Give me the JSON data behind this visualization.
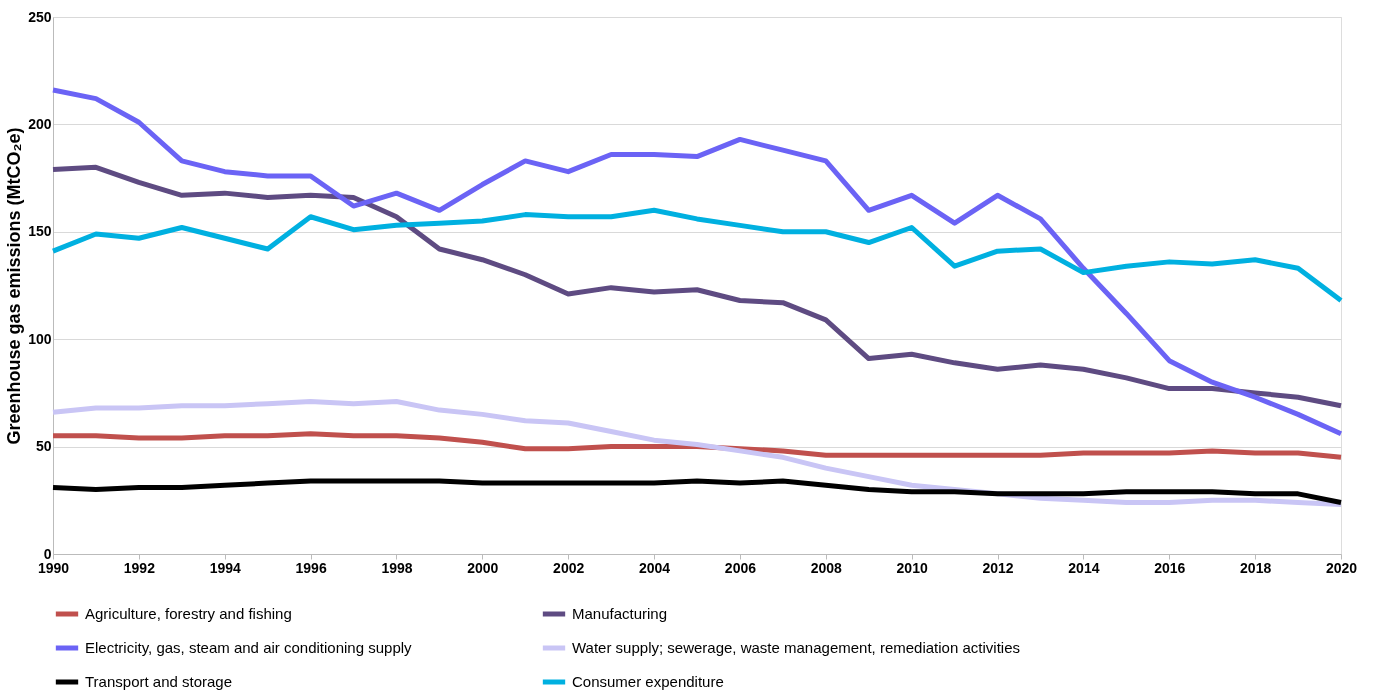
{
  "chart_data": {
    "type": "line",
    "ylabel": "Greenhouse gas emissions (MtCO₂e)",
    "x": [
      1990,
      1991,
      1992,
      1993,
      1994,
      1995,
      1996,
      1997,
      1998,
      1999,
      2000,
      2001,
      2002,
      2003,
      2004,
      2005,
      2006,
      2007,
      2008,
      2009,
      2010,
      2011,
      2012,
      2013,
      2014,
      2015,
      2016,
      2017,
      2018,
      2019,
      2020
    ],
    "xlim": [
      1990,
      2020
    ],
    "xticks": [
      1990,
      1992,
      1994,
      1996,
      1998,
      2000,
      2002,
      2004,
      2006,
      2008,
      2010,
      2012,
      2014,
      2016,
      2018,
      2020
    ],
    "ylim": [
      0,
      250
    ],
    "yticks": [
      0,
      50,
      100,
      150,
      200,
      250
    ],
    "grid": "y",
    "legend": "bottom",
    "marker": "none",
    "line_style": "solid",
    "series": [
      {
        "name": "Agriculture, forestry and fishing",
        "color": "#c0504d",
        "values": [
          55,
          55,
          54,
          54,
          55,
          55,
          56,
          55,
          55,
          54,
          52,
          49,
          49,
          50,
          50,
          50,
          49,
          48,
          46,
          46,
          46,
          46,
          46,
          46,
          47,
          47,
          47,
          48,
          47,
          47,
          45
        ]
      },
      {
        "name": "Manufacturing",
        "color": "#5e4b82",
        "values": [
          179,
          180,
          173,
          167,
          168,
          166,
          167,
          166,
          157,
          142,
          137,
          130,
          121,
          124,
          122,
          123,
          118,
          117,
          109,
          91,
          93,
          89,
          86,
          88,
          86,
          82,
          77,
          77,
          75,
          73,
          69
        ]
      },
      {
        "name": "Electricity, gas, steam and air conditioning supply",
        "color": "#6b63f5",
        "values": [
          216,
          212,
          201,
          183,
          178,
          176,
          176,
          162,
          168,
          160,
          172,
          183,
          178,
          186,
          186,
          185,
          193,
          188,
          183,
          160,
          167,
          154,
          167,
          156,
          133,
          112,
          90,
          80,
          73,
          65,
          56
        ]
      },
      {
        "name": "Water supply; sewerage, waste management, remediation activities",
        "color": "#c9c5f5",
        "values": [
          66,
          68,
          68,
          69,
          69,
          70,
          71,
          70,
          71,
          67,
          65,
          62,
          61,
          57,
          53,
          51,
          48,
          45,
          40,
          36,
          32,
          30,
          28,
          26,
          25,
          24,
          24,
          25,
          25,
          24,
          23
        ]
      },
      {
        "name": "Transport and storage",
        "color": "#000000",
        "values": [
          31,
          30,
          31,
          31,
          32,
          33,
          34,
          34,
          34,
          34,
          33,
          33,
          33,
          33,
          33,
          34,
          33,
          34,
          32,
          30,
          29,
          29,
          28,
          28,
          28,
          29,
          29,
          29,
          28,
          28,
          24
        ]
      },
      {
        "name": "Consumer expenditure",
        "color": "#00b0e0",
        "values": [
          141,
          149,
          147,
          152,
          147,
          142,
          157,
          151,
          153,
          154,
          155,
          158,
          157,
          157,
          160,
          156,
          153,
          150,
          150,
          145,
          152,
          134,
          141,
          142,
          131,
          134,
          136,
          135,
          137,
          133,
          118
        ]
      }
    ]
  }
}
